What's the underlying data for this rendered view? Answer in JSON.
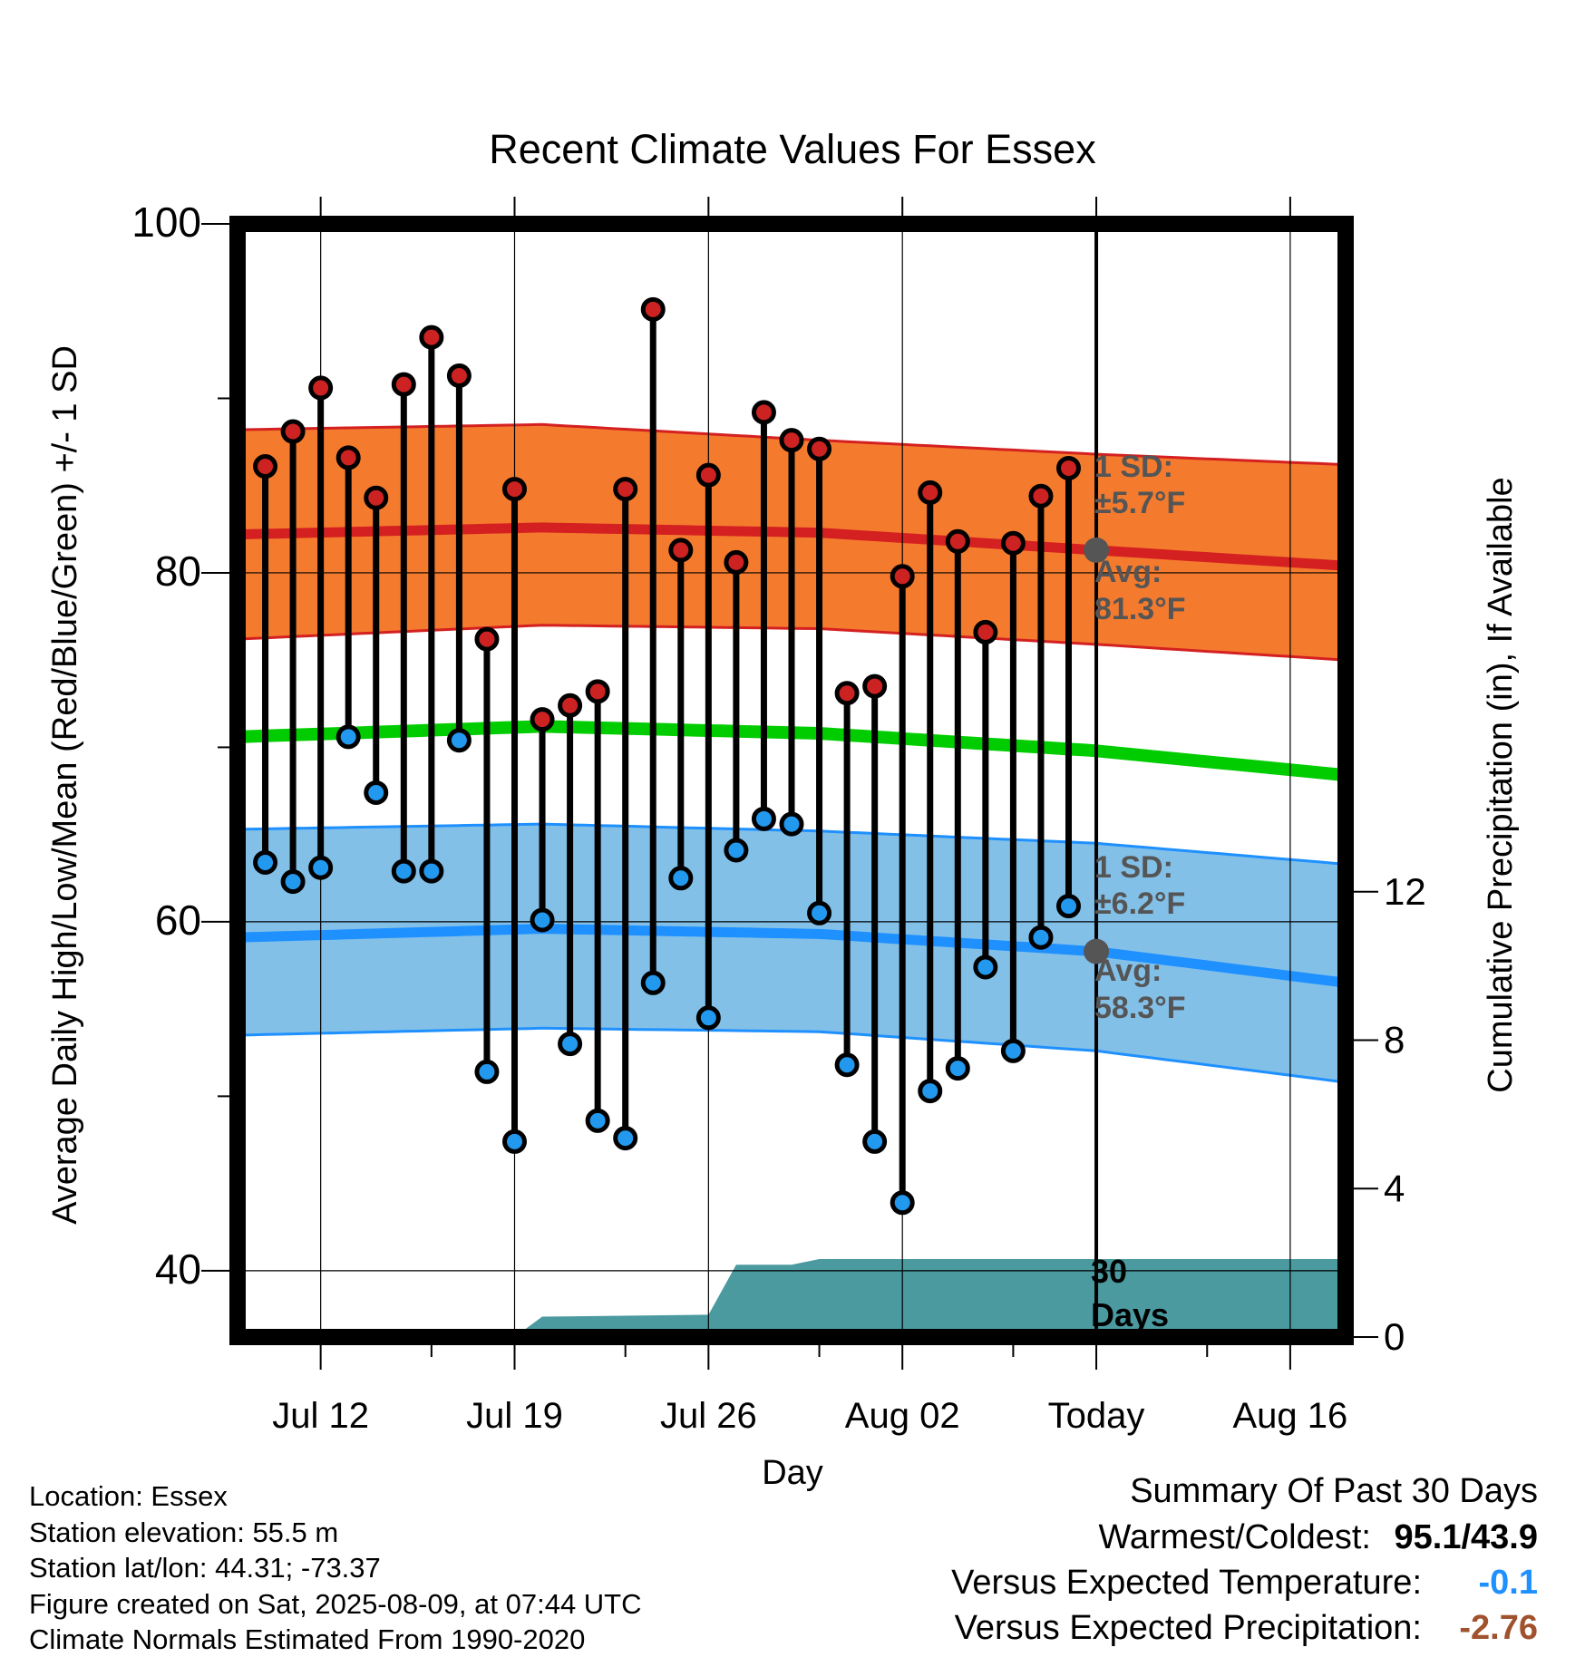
{
  "chart_data": {
    "type": "line",
    "title": "Recent Climate Values For Essex",
    "xlabel": "Day",
    "ylabel": "Average Daily High/Low/Mean (Red/Blue/Green) +/- 1 SD",
    "y2label": "Cumulative Precipitation (in), If Available",
    "ylim": [
      36.2,
      100
    ],
    "y2lim": [
      0,
      30
    ],
    "y_ticks": [
      "100",
      "80",
      "60",
      "40"
    ],
    "y2_ticks": [
      "0",
      "4",
      "8",
      "12"
    ],
    "x_ticks": [
      "Jul 12",
      "Jul 19",
      "Jul 26",
      "Aug 02",
      "Today",
      "Aug 16"
    ],
    "x_days": [
      12,
      19,
      26,
      33,
      40,
      47
    ],
    "today_day": 40,
    "days": [
      10,
      11,
      12,
      13,
      14,
      15,
      16,
      17,
      18,
      19,
      20,
      21,
      22,
      23,
      24,
      25,
      26,
      27,
      28,
      29,
      30,
      31,
      32,
      33,
      34,
      35,
      36,
      37,
      38,
      39
    ],
    "highs": [
      86.1,
      88.1,
      90.6,
      86.6,
      84.3,
      90.8,
      93.5,
      91.3,
      76.2,
      84.8,
      71.6,
      72.4,
      73.2,
      84.8,
      95.1,
      81.3,
      85.6,
      80.6,
      89.2,
      87.6,
      87.1,
      73.1,
      73.5,
      79.8,
      84.6,
      81.8,
      76.6,
      81.7,
      84.4,
      86.0
    ],
    "lows": [
      63.4,
      62.3,
      63.1,
      70.6,
      67.4,
      62.9,
      62.9,
      70.4,
      51.4,
      47.4,
      60.1,
      53.0,
      48.6,
      47.6,
      56.5,
      62.5,
      54.5,
      64.1,
      65.9,
      65.6,
      60.5,
      51.8,
      47.4,
      43.9,
      50.3,
      51.6,
      57.4,
      52.6,
      59.1,
      60.9
    ],
    "normals": {
      "days": [
        9,
        20,
        30,
        40,
        49
      ],
      "avg_high": [
        82.2,
        82.6,
        82.3,
        81.3,
        80.4
      ],
      "high_upper": [
        88.2,
        88.5,
        87.6,
        86.8,
        86.2
      ],
      "high_lower": [
        76.2,
        77.0,
        76.8,
        75.9,
        75.0
      ],
      "avg_mean": [
        70.6,
        71.2,
        70.8,
        69.8,
        68.4
      ],
      "avg_low": [
        59.1,
        59.6,
        59.3,
        58.3,
        56.5
      ],
      "low_upper": [
        65.3,
        65.6,
        65.2,
        64.5,
        63.3
      ],
      "low_lower": [
        53.5,
        53.9,
        53.7,
        52.6,
        50.8
      ]
    },
    "precipitation": {
      "days": [
        19,
        20,
        26,
        27,
        29,
        30,
        49
      ],
      "cumulative": [
        0.0,
        0.55,
        0.6,
        1.95,
        1.95,
        2.1,
        2.1
      ]
    },
    "annotations": {
      "high_sd_line1": "1 SD:",
      "high_sd_line2": "±5.7°F",
      "high_avg_line1": "Avg:",
      "high_avg_line2": "81.3°F",
      "low_sd_line1": "1 SD:",
      "low_sd_line2": "±6.2°F",
      "low_avg_line1": "Avg:",
      "low_avg_line2": "58.3°F",
      "period_line1": "30",
      "period_line2": "Days"
    },
    "colors": {
      "high_band": "#f47b2e",
      "high_line": "#d42020",
      "mean_line": "#00cc00",
      "low_band": "#82c0e8",
      "low_line": "#1e90ff",
      "high_dot": "#cc2222",
      "low_dot": "#2299ee",
      "precip": "#4a9aa0",
      "annotation": "#555555"
    }
  },
  "info": {
    "location": "Location: Essex",
    "elevation": "Station elevation: 55.5 m",
    "latlon": "Station lat/lon: 44.31; -73.37",
    "created": "Figure created on Sat, 2025-08-09, at 07:44 UTC",
    "normals": "Climate Normals Estimated From 1990-2020"
  },
  "summary": {
    "title": "Summary Of Past 30 Days",
    "warm_cold_label": "Warmest/Coldest:",
    "warm_cold_value": "95.1/43.9",
    "temp_label": "Versus Expected Temperature:",
    "temp_value": "-0.1",
    "precip_label": "Versus Expected Precipitation:",
    "precip_value": "-2.76",
    "temp_color": "#1e90ff",
    "precip_color": "#a0522d"
  }
}
